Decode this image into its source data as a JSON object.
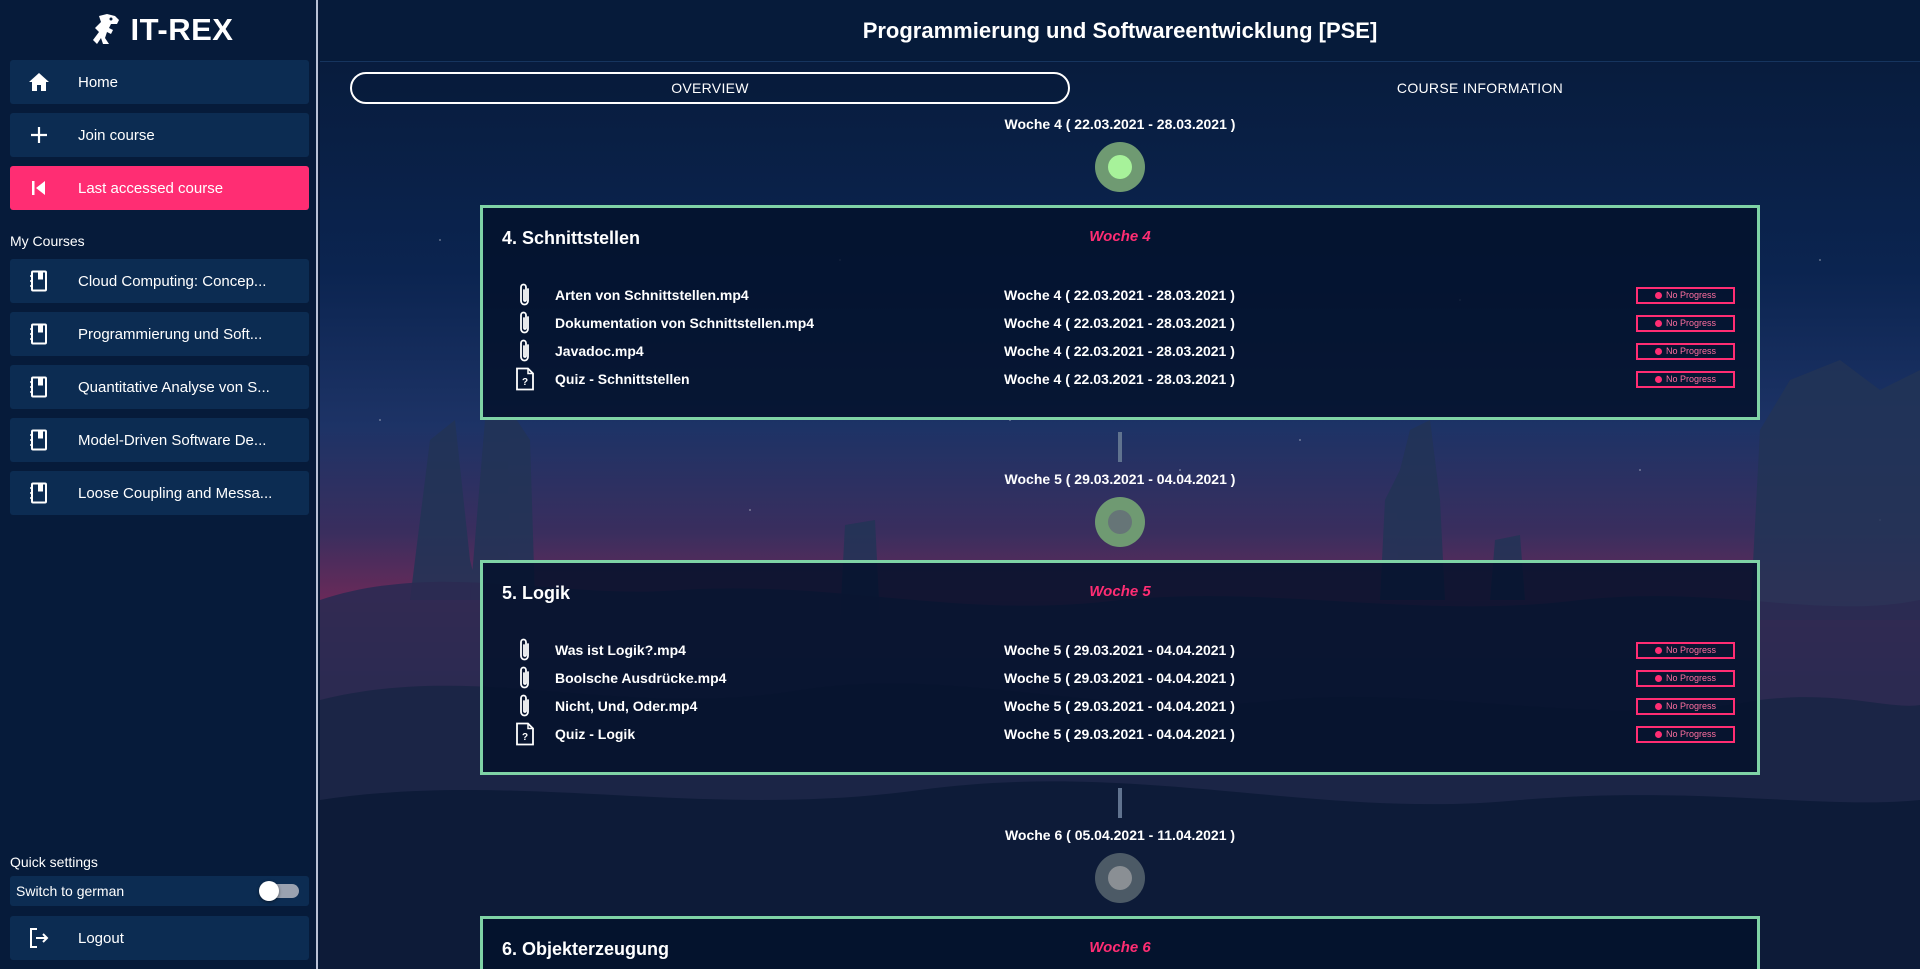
{
  "app": {
    "name": "IT-REX"
  },
  "nav": {
    "home": "Home",
    "join": "Join course",
    "last": "Last accessed course"
  },
  "my_courses": {
    "title": "My Courses",
    "items": [
      {
        "label": "Cloud Computing: Concep..."
      },
      {
        "label": "Programmierung und Soft..."
      },
      {
        "label": "Quantitative Analyse von S..."
      },
      {
        "label": "Model-Driven Software De..."
      },
      {
        "label": "Loose Coupling and Messa..."
      }
    ]
  },
  "quick_settings": {
    "title": "Quick settings",
    "toggle_label": "Switch to german",
    "toggle_on": false
  },
  "logout": "Logout",
  "course": {
    "title": "Programmierung und Softwareentwicklung [PSE]"
  },
  "tabs": {
    "overview": "OVERVIEW",
    "info": "COURSE INFORMATION"
  },
  "timeline": [
    {
      "week_label": "Woche 4 ( 22.03.2021 - 28.03.2021 )",
      "node_state": "done",
      "chapter_title": "4. Schnittstellen",
      "chapter_week": "Woche 4",
      "items": [
        {
          "icon": "paperclip-icon",
          "name": "Arten von Schnittstellen.mp4",
          "date": "Woche 4 ( 22.03.2021 - 28.03.2021 )",
          "status": "No Progress"
        },
        {
          "icon": "paperclip-icon",
          "name": "Dokumentation von Schnittstellen.mp4",
          "date": "Woche 4 ( 22.03.2021 - 28.03.2021 )",
          "status": "No Progress"
        },
        {
          "icon": "paperclip-icon",
          "name": "Javadoc.mp4",
          "date": "Woche 4 ( 22.03.2021 - 28.03.2021 )",
          "status": "No Progress"
        },
        {
          "icon": "quiz-icon",
          "name": "Quiz - Schnittstellen",
          "date": "Woche 4 ( 22.03.2021 - 28.03.2021 )",
          "status": "No Progress"
        }
      ]
    },
    {
      "week_label": "Woche 5 ( 29.03.2021 - 04.04.2021 )",
      "node_state": "open",
      "chapter_title": "5. Logik",
      "chapter_week": "Woche 5",
      "items": [
        {
          "icon": "paperclip-icon",
          "name": "Was ist Logik?.mp4",
          "date": "Woche 5 ( 29.03.2021 - 04.04.2021 )",
          "status": "No Progress"
        },
        {
          "icon": "paperclip-icon",
          "name": "Boolsche Ausdrücke.mp4",
          "date": "Woche 5 ( 29.03.2021 - 04.04.2021 )",
          "status": "No Progress"
        },
        {
          "icon": "paperclip-icon",
          "name": "Nicht, Und, Oder.mp4",
          "date": "Woche 5 ( 29.03.2021 - 04.04.2021 )",
          "status": "No Progress"
        },
        {
          "icon": "quiz-icon",
          "name": "Quiz - Logik",
          "date": "Woche 5 ( 29.03.2021 - 04.04.2021 )",
          "status": "No Progress"
        }
      ]
    },
    {
      "week_label": "Woche 6 ( 05.04.2021 - 11.04.2021 )",
      "node_state": "grey",
      "chapter_title": "6. Objekterzeugung",
      "chapter_week": "Woche 6",
      "items": []
    }
  ],
  "colors": {
    "accent": "#ff2d73",
    "card_border": "#7fd3a6",
    "sidebar_bg": "#061b3a",
    "nav_item_bg": "#0c2c52"
  }
}
